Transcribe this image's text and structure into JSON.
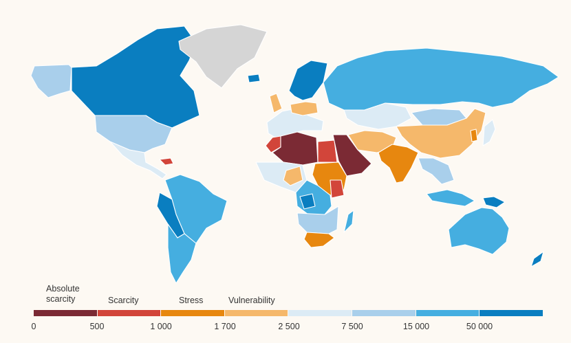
{
  "colors": {
    "absolute_scarcity": "#7b2a34",
    "scarcity": "#d2453a",
    "stress": "#e7870f",
    "vulnerability": "#f5b86b",
    "band_2500_7500": "#dcebf5",
    "band_7500_15000": "#a9cfeb",
    "band_15000_50000": "#45aee0",
    "band_50000_plus": "#0a7ec0",
    "no_data": "#d5d5d5",
    "background": "#fdf9f3"
  },
  "legend": {
    "categories": [
      {
        "label": "Absolute\nscarcity",
        "color": "#7b2a34"
      },
      {
        "label": "Scarcity",
        "color": "#d2453a"
      },
      {
        "label": "Stress",
        "color": "#e7870f"
      },
      {
        "label": "Vulnerability",
        "color": "#f5b86b"
      },
      {
        "label": "",
        "color": "#dcebf5"
      },
      {
        "label": "",
        "color": "#a9cfeb"
      },
      {
        "label": "",
        "color": "#45aee0"
      },
      {
        "label": "",
        "color": "#0a7ec0"
      }
    ],
    "ticks": [
      "0",
      "500",
      "1 000",
      "1 700",
      "2 500",
      "7 500",
      "15 000",
      "50 000"
    ]
  },
  "regions": [
    {
      "name": "alaska",
      "class": "band_7500_15000"
    },
    {
      "name": "canada",
      "class": "band_50000_plus"
    },
    {
      "name": "greenland",
      "class": "no_data"
    },
    {
      "name": "usa",
      "class": "band_7500_15000"
    },
    {
      "name": "mexico-central-america",
      "class": "band_2500_7500"
    },
    {
      "name": "caribbean",
      "class": "scarcity"
    },
    {
      "name": "south-america",
      "class": "band_15000_50000"
    },
    {
      "name": "andes-west",
      "class": "band_50000_plus"
    },
    {
      "name": "chile-argentina",
      "class": "band_15000_50000"
    },
    {
      "name": "iceland",
      "class": "band_50000_plus"
    },
    {
      "name": "scandinavia",
      "class": "band_50000_plus"
    },
    {
      "name": "western-europe",
      "class": "band_2500_7500"
    },
    {
      "name": "uk",
      "class": "vulnerability"
    },
    {
      "name": "poland",
      "class": "vulnerability"
    },
    {
      "name": "russia",
      "class": "band_15000_50000"
    },
    {
      "name": "kazakhstan",
      "class": "band_2500_7500"
    },
    {
      "name": "mongolia",
      "class": "band_7500_15000"
    },
    {
      "name": "china",
      "class": "vulnerability"
    },
    {
      "name": "korea",
      "class": "stress"
    },
    {
      "name": "japan",
      "class": "band_2500_7500"
    },
    {
      "name": "north-africa",
      "class": "absolute_scarcity"
    },
    {
      "name": "morocco",
      "class": "scarcity"
    },
    {
      "name": "egypt",
      "class": "scarcity"
    },
    {
      "name": "arabian-peninsula",
      "class": "absolute_scarcity"
    },
    {
      "name": "iran-afghanistan",
      "class": "vulnerability"
    },
    {
      "name": "india-pakistan",
      "class": "stress"
    },
    {
      "name": "southeast-asia",
      "class": "band_7500_15000"
    },
    {
      "name": "indonesia",
      "class": "band_15000_50000"
    },
    {
      "name": "papua",
      "class": "band_50000_plus"
    },
    {
      "name": "west-africa",
      "class": "band_2500_7500"
    },
    {
      "name": "nigeria",
      "class": "vulnerability"
    },
    {
      "name": "ethiopia-sudan",
      "class": "stress"
    },
    {
      "name": "kenya",
      "class": "scarcity"
    },
    {
      "name": "central-africa",
      "class": "band_15000_50000"
    },
    {
      "name": "congo",
      "class": "band_50000_plus"
    },
    {
      "name": "southern-africa",
      "class": "band_7500_15000"
    },
    {
      "name": "south-africa",
      "class": "stress"
    },
    {
      "name": "madagascar",
      "class": "band_15000_50000"
    },
    {
      "name": "australia",
      "class": "band_15000_50000"
    },
    {
      "name": "new-zealand",
      "class": "band_50000_plus"
    }
  ]
}
